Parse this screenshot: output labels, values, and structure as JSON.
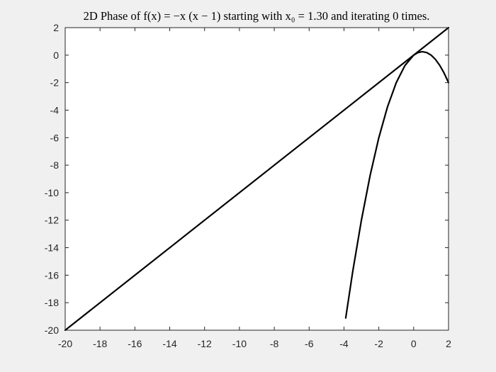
{
  "chart_data": {
    "type": "line",
    "title": "2D Phase of f(x) = −x (x − 1) starting with x₀ = 1.30 and iterating 0 times.",
    "xlabel": "",
    "ylabel": "",
    "xlim": [
      -20,
      2
    ],
    "ylim": [
      -20,
      2
    ],
    "xticks": [
      -20,
      -18,
      -16,
      -14,
      -12,
      -10,
      -8,
      -6,
      -4,
      -2,
      0,
      2
    ],
    "yticks": [
      -20,
      -18,
      -16,
      -14,
      -12,
      -10,
      -8,
      -6,
      -4,
      -2,
      0,
      2
    ],
    "grid": false,
    "legend": "none",
    "series": [
      {
        "kind": "identity-line",
        "color": "#000000",
        "points": [
          [
            -20,
            -20
          ],
          [
            2,
            2
          ]
        ]
      },
      {
        "kind": "function-curve",
        "color": "#000000",
        "points": [
          [
            -3.9,
            -19.11
          ],
          [
            -3.5,
            -15.75
          ],
          [
            -3.0,
            -12.0
          ],
          [
            -2.5,
            -8.75
          ],
          [
            -2.0,
            -6.0
          ],
          [
            -1.5,
            -3.75
          ],
          [
            -1.0,
            -2.0
          ],
          [
            -0.5,
            -0.75
          ],
          [
            0.0,
            0.0
          ],
          [
            0.25,
            0.1875
          ],
          [
            0.5,
            0.25
          ],
          [
            0.75,
            0.1875
          ],
          [
            1.0,
            0.0
          ],
          [
            1.25,
            -0.3125
          ],
          [
            1.5,
            -0.75
          ],
          [
            1.75,
            -1.3125
          ],
          [
            2.0,
            -2.0
          ]
        ]
      }
    ]
  }
}
